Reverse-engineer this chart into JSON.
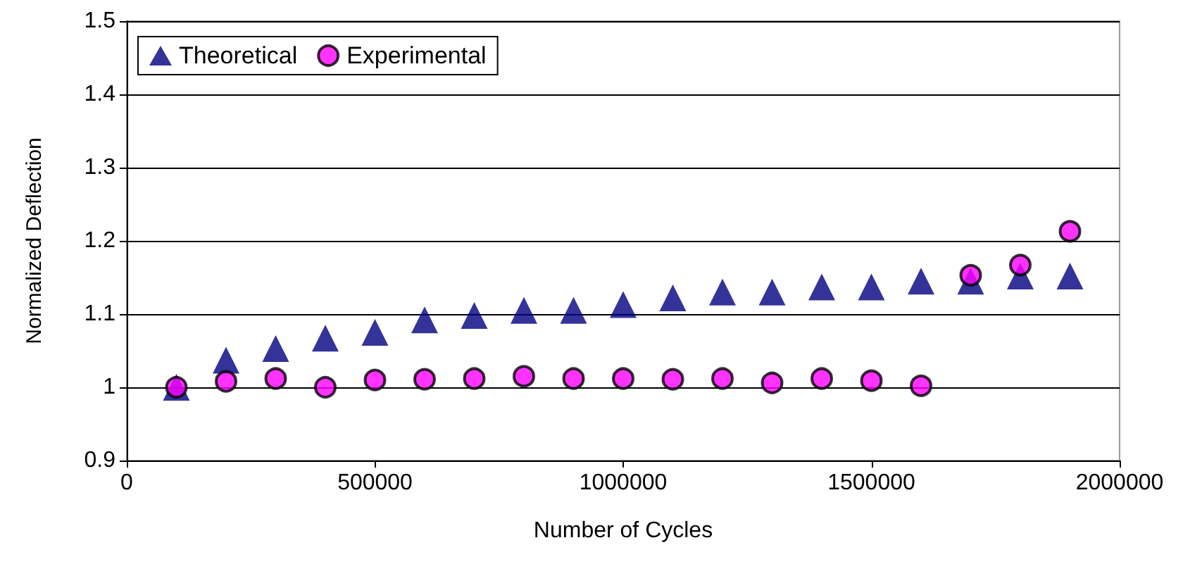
{
  "chart_data": {
    "type": "scatter",
    "xlabel": "Number of Cycles",
    "ylabel": "Normalized Deflection",
    "x": [
      100000,
      200000,
      300000,
      400000,
      500000,
      600000,
      700000,
      800000,
      900000,
      1000000,
      1100000,
      1200000,
      1300000,
      1400000,
      1500000,
      1600000,
      1700000,
      1800000,
      1900000
    ],
    "series": [
      {
        "name": "Theoretical",
        "color": "#000080",
        "marker": "triangle",
        "values": [
          1.0,
          1.037,
          1.053,
          1.067,
          1.075,
          1.092,
          1.098,
          1.105,
          1.105,
          1.113,
          1.122,
          1.13,
          1.13,
          1.137,
          1.137,
          1.145,
          1.145,
          1.152,
          1.152
        ]
      },
      {
        "name": "Experimental",
        "color": "#ff00ff",
        "marker": "circle",
        "values": [
          1.0,
          1.008,
          1.012,
          1.0,
          1.01,
          1.011,
          1.012,
          1.015,
          1.012,
          1.012,
          1.011,
          1.012,
          1.006,
          1.012,
          1.009,
          1.002,
          1.153,
          1.167,
          1.213
        ]
      }
    ],
    "xlim": [
      0,
      2000000
    ],
    "xticks": [
      0,
      500000,
      1000000,
      1500000,
      2000000
    ],
    "ylim": [
      0.9,
      1.5
    ],
    "yticks": [
      0.9,
      1,
      1.1,
      1.2,
      1.3,
      1.4,
      1.5
    ],
    "grid": "y",
    "legend": "top left"
  }
}
